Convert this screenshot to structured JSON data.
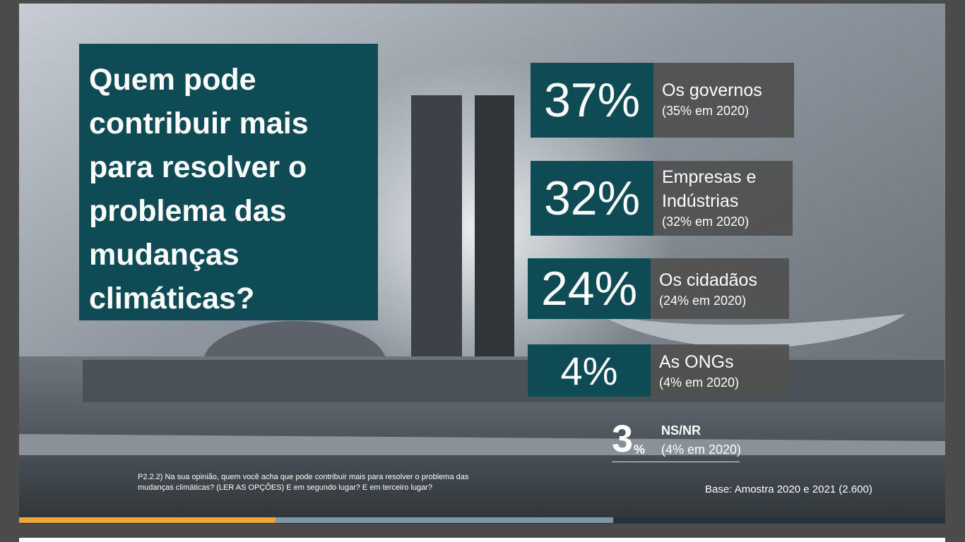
{
  "title": "Quem pode contribuir mais para resolver o problema das mudanças climáticas?",
  "items": [
    {
      "value": "37%",
      "label": "Os governos",
      "previous": "(35% em 2020)"
    },
    {
      "value": "32%",
      "label": "Empresas e Indústrias",
      "previous": "(32% em 2020)"
    },
    {
      "value": "24%",
      "label": "Os cidadãos",
      "previous": "(24% em 2020)"
    },
    {
      "value": "4%",
      "label": "As ONGs",
      "previous": "(4% em 2020)"
    }
  ],
  "other": {
    "value": "3",
    "unit": "%",
    "label": "NS/NR",
    "previous": "(4% em 2020)"
  },
  "footnote": "P2.2.2) Na sua opinião, quem você acha que pode contribuir mais para resolver o problema das mudanças climáticas? (LER AS OPÇÕES) E em segundo lugar? E em terceiro lugar?",
  "base": "Base: Amostra 2020 e 2021 (2.600)"
}
